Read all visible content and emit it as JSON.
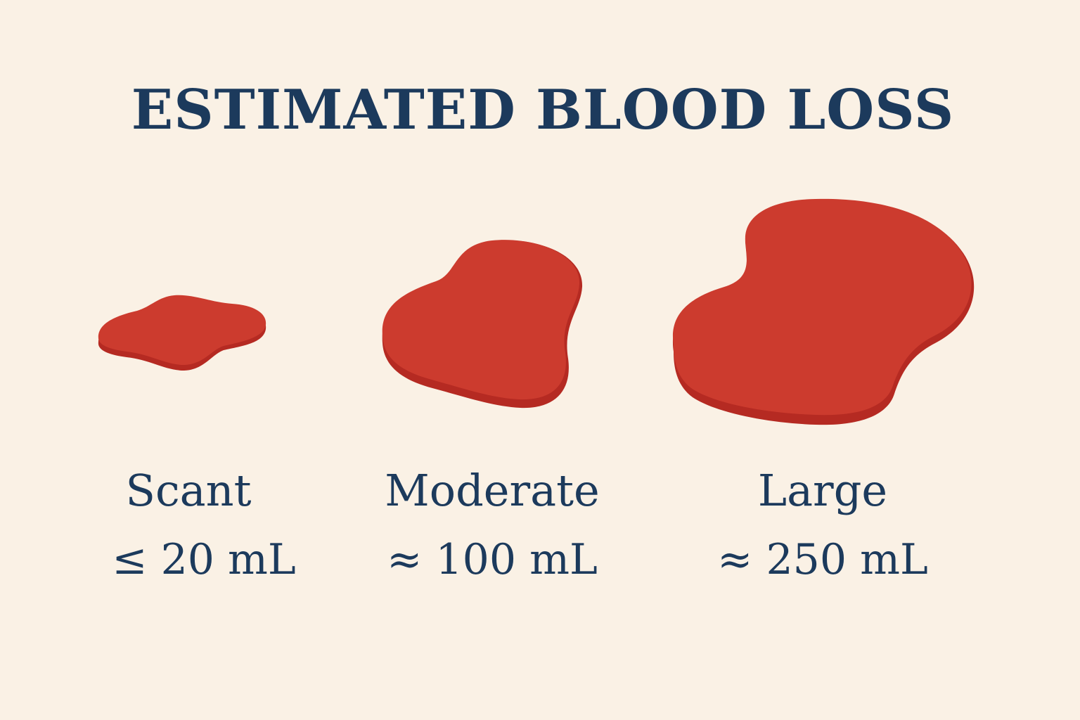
{
  "title": "ESTIMATED BLOOD LOSS",
  "colors": {
    "background": "#faf1e5",
    "text": "#1c3a5c",
    "blood": "#cc3b2e",
    "blood_edge": "#b52a22"
  },
  "categories": [
    {
      "name": "Scant",
      "amount": "≤ 20 mL"
    },
    {
      "name": "Moderate",
      "amount": "≈ 100 mL"
    },
    {
      "name": "Large",
      "amount": "≈ 250 mL"
    }
  ]
}
